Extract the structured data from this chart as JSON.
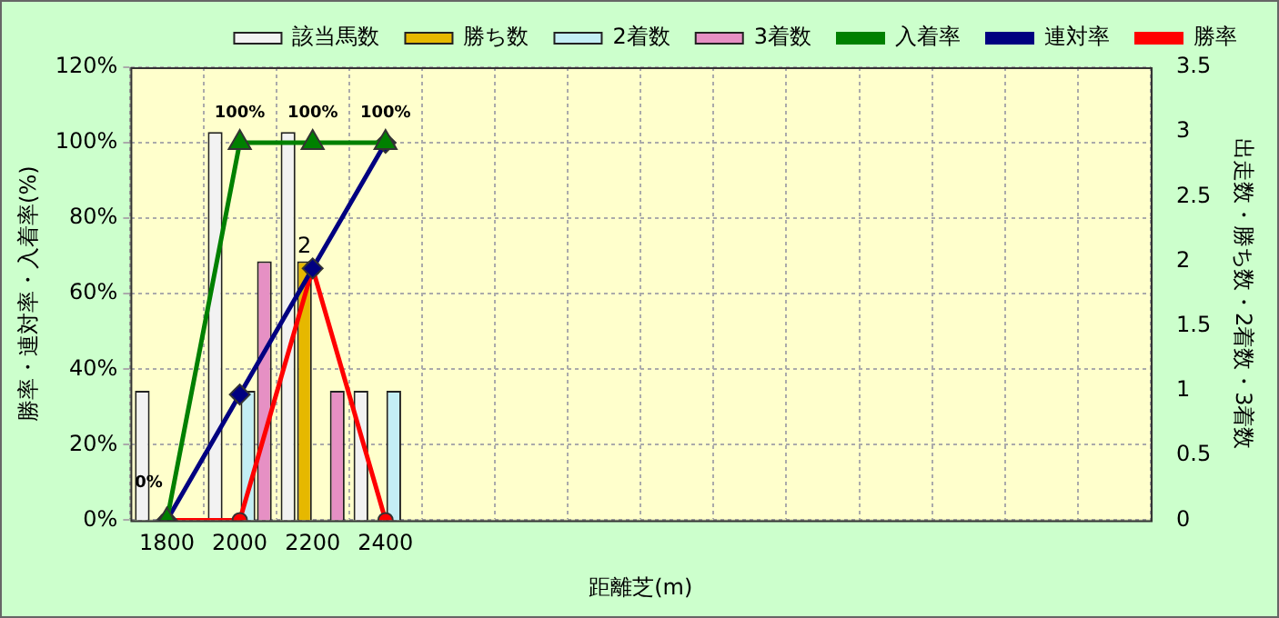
{
  "chart_data": {
    "type": "bar",
    "xlabel": "距離芝(m)",
    "ylabel": "勝率・連対率・入着率(%)",
    "y2label": "出走数・勝ち数・2着数・3着数",
    "categories": [
      "1800",
      "2000",
      "2200",
      "2400",
      null,
      null,
      null,
      null,
      null,
      null,
      null,
      null,
      null,
      null
    ],
    "series": [
      {
        "name": "該当馬数",
        "axis": "y2",
        "color": "#f2f2f2",
        "values": [
          1,
          3,
          3,
          1,
          null,
          null,
          null,
          null,
          null,
          null,
          null,
          null,
          null,
          null
        ]
      },
      {
        "name": "勝ち数",
        "axis": "y2",
        "color": "#e6b800",
        "values": [
          0,
          0,
          2,
          0,
          null,
          null,
          null,
          null,
          null,
          null,
          null,
          null,
          null,
          null
        ],
        "value_labels": [
          null,
          null,
          "2",
          null,
          null,
          null,
          null,
          null,
          null,
          null,
          null,
          null,
          null,
          null
        ]
      },
      {
        "name": "2着数",
        "axis": "y2",
        "color": "#c4eef5",
        "values": [
          0,
          1,
          0,
          1,
          null,
          null,
          null,
          null,
          null,
          null,
          null,
          null,
          null,
          null
        ]
      },
      {
        "name": "3着数",
        "axis": "y2",
        "color": "#e690c4",
        "values": [
          0,
          2,
          1,
          0,
          null,
          null,
          null,
          null,
          null,
          null,
          null,
          null,
          null,
          null
        ]
      },
      {
        "name": "入着率",
        "type": "line",
        "marker": "triangle",
        "color": "#008000",
        "values": [
          0,
          100,
          100,
          100,
          null,
          null,
          null,
          null,
          null,
          null,
          null,
          null,
          null,
          null
        ],
        "value_labels": [
          "0%",
          "100%",
          "100%",
          "100%",
          null,
          null,
          null,
          null,
          null,
          null,
          null,
          null,
          null,
          null
        ]
      },
      {
        "name": "連対率",
        "type": "line",
        "marker": "diamond",
        "color": "#000080",
        "values": [
          0,
          33.3,
          66.7,
          100,
          null,
          null,
          null,
          null,
          null,
          null,
          null,
          null,
          null,
          null
        ]
      },
      {
        "name": "勝率",
        "type": "line",
        "marker": "circle",
        "color": "#ff0000",
        "values": [
          0,
          0,
          66.7,
          0,
          null,
          null,
          null,
          null,
          null,
          null,
          null,
          null,
          null,
          null
        ]
      }
    ],
    "ylim": [
      0,
      120
    ],
    "yticks": [
      {
        "value": 0,
        "label": "0%"
      },
      {
        "value": 20,
        "label": "20%"
      },
      {
        "value": 40,
        "label": "40%"
      },
      {
        "value": 60,
        "label": "60%"
      },
      {
        "value": 80,
        "label": "80%"
      },
      {
        "value": 100,
        "label": "100%"
      },
      {
        "value": 120,
        "label": "120%"
      }
    ],
    "y2lim": [
      0,
      3.5
    ],
    "y2ticks": [
      0,
      0.5,
      1,
      1.5,
      2,
      2.5,
      3,
      3.5
    ],
    "grid": true,
    "legend": "top",
    "line_style": "solid"
  }
}
